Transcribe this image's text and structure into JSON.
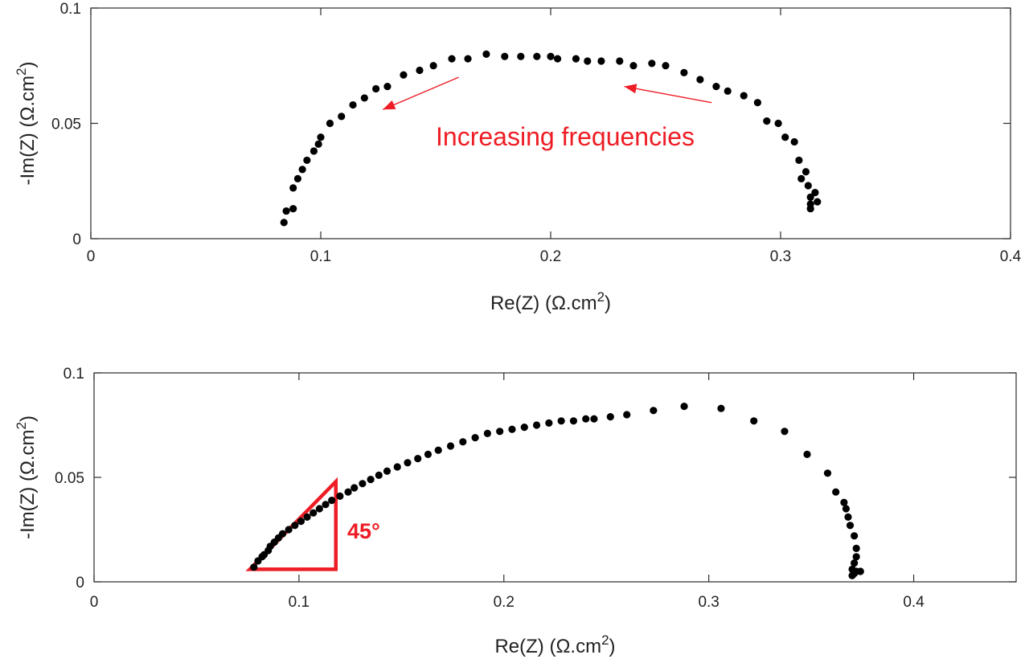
{
  "chart_data": [
    {
      "type": "scatter",
      "title": "",
      "xlabel": "Re(Z) (Ω.cm",
      "xlabel_sup": "2",
      "xlabel_close": ")",
      "ylabel": "-Im(Z) (Ω.cm",
      "ylabel_sup": "2",
      "ylabel_close": ")",
      "xlim": [
        0,
        0.4
      ],
      "ylim": [
        0,
        0.1
      ],
      "xticks": [
        0,
        0.1,
        0.2,
        0.3,
        0.4
      ],
      "xtick_labels": [
        "0",
        "0.1",
        "0.2",
        "0.3",
        "0.4"
      ],
      "yticks": [
        0,
        0.05,
        0.1
      ],
      "ytick_labels": [
        "0",
        "0.05",
        "0.1"
      ],
      "grid": false,
      "marker_color": "#000000",
      "annotations": [
        {
          "text": "Increasing frequencies",
          "color": "#ee1c24"
        }
      ],
      "arrows": [
        {
          "from": [
            0.16,
            0.07
          ],
          "to": [
            0.127,
            0.056
          ],
          "color": "#ee1c24"
        },
        {
          "from": [
            0.27,
            0.059
          ],
          "to": [
            0.232,
            0.066
          ],
          "color": "#ee1c24"
        }
      ],
      "series": [
        {
          "points": [
            [
              0.084,
              0.007
            ],
            [
              0.085,
              0.012
            ],
            [
              0.088,
              0.013
            ],
            [
              0.088,
              0.022
            ],
            [
              0.09,
              0.026
            ],
            [
              0.092,
              0.03
            ],
            [
              0.094,
              0.034
            ],
            [
              0.097,
              0.038
            ],
            [
              0.099,
              0.041
            ],
            [
              0.1,
              0.044
            ],
            [
              0.104,
              0.05
            ],
            [
              0.109,
              0.053
            ],
            [
              0.114,
              0.058
            ],
            [
              0.119,
              0.061
            ],
            [
              0.124,
              0.065
            ],
            [
              0.129,
              0.066
            ],
            [
              0.136,
              0.071
            ],
            [
              0.143,
              0.073
            ],
            [
              0.149,
              0.075
            ],
            [
              0.157,
              0.078
            ],
            [
              0.164,
              0.078
            ],
            [
              0.172,
              0.08
            ],
            [
              0.18,
              0.079
            ],
            [
              0.187,
              0.079
            ],
            [
              0.194,
              0.079
            ],
            [
              0.2,
              0.079
            ],
            [
              0.203,
              0.078
            ],
            [
              0.211,
              0.078
            ],
            [
              0.216,
              0.077
            ],
            [
              0.222,
              0.077
            ],
            [
              0.23,
              0.077
            ],
            [
              0.236,
              0.075
            ],
            [
              0.244,
              0.076
            ],
            [
              0.25,
              0.075
            ],
            [
              0.258,
              0.072
            ],
            [
              0.265,
              0.069
            ],
            [
              0.272,
              0.066
            ],
            [
              0.277,
              0.064
            ],
            [
              0.284,
              0.062
            ],
            [
              0.29,
              0.059
            ],
            [
              0.294,
              0.051
            ],
            [
              0.299,
              0.05
            ],
            [
              0.302,
              0.044
            ],
            [
              0.306,
              0.042
            ],
            [
              0.308,
              0.034
            ],
            [
              0.309,
              0.026
            ],
            [
              0.311,
              0.029
            ],
            [
              0.312,
              0.023
            ],
            [
              0.313,
              0.018
            ],
            [
              0.313,
              0.015
            ],
            [
              0.313,
              0.013
            ],
            [
              0.315,
              0.02
            ],
            [
              0.316,
              0.016
            ]
          ]
        }
      ]
    },
    {
      "type": "scatter",
      "title": "",
      "xlabel": "Re(Z) (Ω.cm",
      "xlabel_sup": "2",
      "xlabel_close": ")",
      "ylabel": "-Im(Z) (Ω.cm",
      "ylabel_sup": "2",
      "ylabel_close": ")",
      "xlim": [
        0,
        0.45
      ],
      "ylim": [
        0,
        0.1
      ],
      "xticks": [
        0,
        0.1,
        0.2,
        0.3,
        0.4
      ],
      "xtick_labels": [
        "0",
        "0.1",
        "0.2",
        "0.3",
        "0.4"
      ],
      "yticks": [
        0,
        0.05,
        0.1
      ],
      "ytick_labels": [
        "0",
        "0.05",
        "0.1"
      ],
      "grid": false,
      "marker_color": "#000000",
      "annotations": [
        {
          "text": "45°",
          "color": "#ee1c24"
        }
      ],
      "triangle": {
        "vertices": [
          [
            0.076,
            0.006
          ],
          [
            0.118,
            0.048
          ],
          [
            0.118,
            0.006
          ]
        ],
        "color": "#ee1c24"
      },
      "series": [
        {
          "points": [
            [
              0.078,
              0.007
            ],
            [
              0.08,
              0.01
            ],
            [
              0.082,
              0.012
            ],
            [
              0.083,
              0.013
            ],
            [
              0.085,
              0.015
            ],
            [
              0.086,
              0.017
            ],
            [
              0.088,
              0.019
            ],
            [
              0.09,
              0.021
            ],
            [
              0.092,
              0.023
            ],
            [
              0.095,
              0.025
            ],
            [
              0.098,
              0.027
            ],
            [
              0.101,
              0.029
            ],
            [
              0.104,
              0.031
            ],
            [
              0.107,
              0.033
            ],
            [
              0.11,
              0.035
            ],
            [
              0.113,
              0.037
            ],
            [
              0.116,
              0.039
            ],
            [
              0.12,
              0.041
            ],
            [
              0.124,
              0.043
            ],
            [
              0.127,
              0.045
            ],
            [
              0.131,
              0.047
            ],
            [
              0.135,
              0.049
            ],
            [
              0.139,
              0.051
            ],
            [
              0.143,
              0.053
            ],
            [
              0.148,
              0.055
            ],
            [
              0.153,
              0.057
            ],
            [
              0.158,
              0.059
            ],
            [
              0.163,
              0.061
            ],
            [
              0.168,
              0.063
            ],
            [
              0.174,
              0.065
            ],
            [
              0.18,
              0.067
            ],
            [
              0.186,
              0.069
            ],
            [
              0.192,
              0.071
            ],
            [
              0.198,
              0.072
            ],
            [
              0.204,
              0.073
            ],
            [
              0.21,
              0.074
            ],
            [
              0.216,
              0.075
            ],
            [
              0.222,
              0.076
            ],
            [
              0.228,
              0.077
            ],
            [
              0.234,
              0.077
            ],
            [
              0.24,
              0.078
            ],
            [
              0.244,
              0.078
            ],
            [
              0.252,
              0.079
            ],
            [
              0.26,
              0.08
            ],
            [
              0.273,
              0.082
            ],
            [
              0.288,
              0.084
            ],
            [
              0.306,
              0.083
            ],
            [
              0.322,
              0.077
            ],
            [
              0.337,
              0.072
            ],
            [
              0.348,
              0.061
            ],
            [
              0.358,
              0.052
            ],
            [
              0.362,
              0.043
            ],
            [
              0.366,
              0.038
            ],
            [
              0.367,
              0.035
            ],
            [
              0.368,
              0.031
            ],
            [
              0.369,
              0.027
            ],
            [
              0.371,
              0.022
            ],
            [
              0.372,
              0.016
            ],
            [
              0.372,
              0.012
            ],
            [
              0.371,
              0.009
            ],
            [
              0.37,
              0.006
            ],
            [
              0.372,
              0.005
            ],
            [
              0.374,
              0.005
            ],
            [
              0.37,
              0.003
            ],
            [
              0.371,
              0.004
            ]
          ]
        }
      ]
    }
  ]
}
